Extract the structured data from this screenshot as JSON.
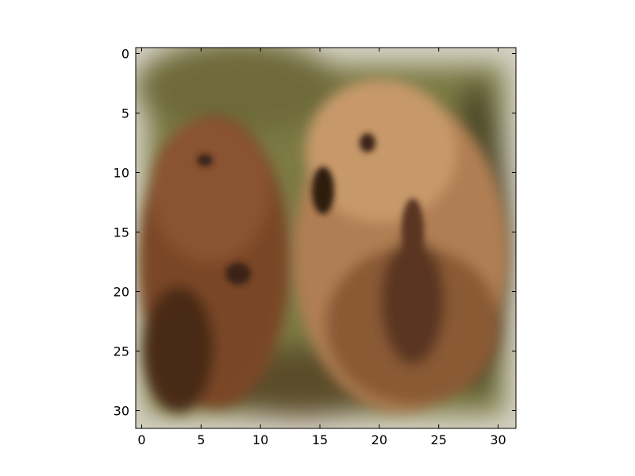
{
  "figure": {
    "image_subject": "two brown bears in grass",
    "image_resolution": [
      32,
      32
    ],
    "colors": {
      "background": "#ffffff",
      "frame_border": "#d6d2c4",
      "grass_dark": "#4e4a2a",
      "grass_green": "#7b7a45",
      "bear_left_fur": "#7a4626",
      "bear_left_dark": "#4a2a17",
      "bear_right_fur": "#b07e52",
      "bear_right_light": "#c7996a",
      "bear_shadow": "#3b2216"
    }
  },
  "chart_data": {
    "type": "image",
    "title": "",
    "xlabel": "",
    "ylabel": "",
    "xlim": [
      -0.5,
      31.5
    ],
    "ylim": [
      31.5,
      -0.5
    ],
    "x_ticks": [
      0,
      5,
      10,
      15,
      20,
      25,
      30
    ],
    "y_ticks": [
      0,
      5,
      10,
      15,
      20,
      25,
      30
    ],
    "x_tick_labels": [
      "0",
      "5",
      "10",
      "15",
      "20",
      "25",
      "30"
    ],
    "y_tick_labels": [
      "0",
      "5",
      "10",
      "15",
      "20",
      "25",
      "30"
    ],
    "grid": false
  }
}
